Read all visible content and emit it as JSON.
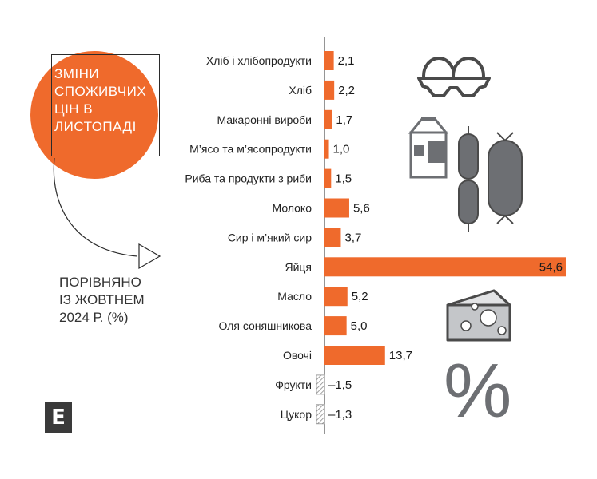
{
  "header": {
    "title_lines": [
      "ЗМІНИ",
      "СПОЖИВЧИХ",
      "ЦІН В",
      "ЛИСТОПАДІ"
    ],
    "subtitle_lines": [
      "ПОРІВНЯНО",
      "ІЗ ЖОВТНЕМ",
      "2024 Р. (%)"
    ]
  },
  "logo": {
    "letter": "E",
    "icon": "e-logo-icon"
  },
  "decorations": {
    "percent_symbol": "%",
    "icons": [
      "eggs-tray-icon",
      "milk-carton-icon",
      "sausage-icon",
      "cheese-icon"
    ]
  },
  "colors": {
    "accent": "#ef6a2c",
    "negative_hatch": "#9a9a9a",
    "text": "#222222",
    "icon_gray": "#6d6f73"
  },
  "chart_data": {
    "type": "bar",
    "orientation": "horizontal",
    "categories": [
      "Хліб і хлібопродукти",
      "Хліб",
      "Макаронні вироби",
      "М’ясо та м’ясопродукти",
      "Риба та продукти з риби",
      "Молоко",
      "Сир і м’який сир",
      "Яйця",
      "Масло",
      "Оля соняшникова",
      "Овочі",
      "Фрукти",
      "Цукор"
    ],
    "values": [
      2.1,
      2.2,
      1.7,
      1.0,
      1.5,
      5.6,
      3.7,
      54.6,
      5.2,
      5.0,
      13.7,
      -1.5,
      -1.3
    ],
    "value_labels": [
      "2,1",
      "2,2",
      "1,7",
      "1,0",
      "1,5",
      "5,6",
      "3,7",
      "54,6",
      "5,2",
      "5,0",
      "13,7",
      "–1,5",
      "–1,3"
    ],
    "xlim": [
      -1.5,
      54.6
    ],
    "grid": false,
    "legend": "none"
  }
}
